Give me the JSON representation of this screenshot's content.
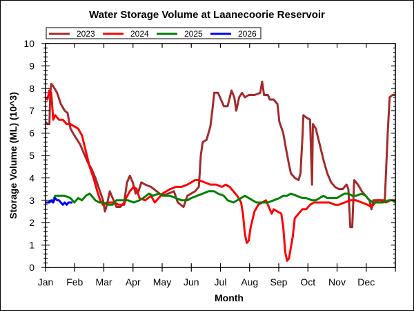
{
  "chart_data": {
    "type": "line",
    "title": "Water Storage Volume at Laanecoorie Reservoir",
    "xlabel": "Month",
    "ylabel": "Storage Volume (ML) (10^3)",
    "x_unit": "day of year",
    "xlim": [
      0,
      365
    ],
    "ylim": [
      0,
      10
    ],
    "yticks": [
      0,
      1,
      2,
      3,
      4,
      5,
      6,
      7,
      8,
      9,
      10
    ],
    "xtick_labels": [
      "Jan",
      "Feb",
      "Mar",
      "Apr",
      "May",
      "Jun",
      "Jul",
      "Aug",
      "Sep",
      "Oct",
      "Nov",
      "Dec"
    ],
    "grid": false,
    "legend_position": "top-left",
    "series": [
      {
        "name": "2023",
        "color": "#a52a2a",
        "points": [
          [
            0,
            6.5
          ],
          [
            2,
            6.4
          ],
          [
            4,
            6.4
          ],
          [
            5,
            7.8
          ],
          [
            6,
            8.2
          ],
          [
            8,
            8.1
          ],
          [
            12,
            7.8
          ],
          [
            16,
            7.3
          ],
          [
            20,
            7.0
          ],
          [
            23,
            6.9
          ],
          [
            26,
            6.2
          ],
          [
            30,
            5.9
          ],
          [
            36,
            5.5
          ],
          [
            40,
            5.1
          ],
          [
            44,
            4.7
          ],
          [
            48,
            4.4
          ],
          [
            52,
            4.0
          ],
          [
            56,
            3.5
          ],
          [
            60,
            3.0
          ],
          [
            62,
            2.5
          ],
          [
            64,
            2.8
          ],
          [
            67,
            3.4
          ],
          [
            71,
            3.0
          ],
          [
            74,
            2.7
          ],
          [
            78,
            2.7
          ],
          [
            82,
            2.9
          ],
          [
            85,
            3.8
          ],
          [
            88,
            4.1
          ],
          [
            91,
            3.8
          ],
          [
            94,
            3.3
          ],
          [
            97,
            3.4
          ],
          [
            100,
            3.8
          ],
          [
            104,
            3.7
          ],
          [
            110,
            3.6
          ],
          [
            116,
            3.4
          ],
          [
            122,
            3.2
          ],
          [
            128,
            3.3
          ],
          [
            134,
            3.4
          ],
          [
            138,
            2.9
          ],
          [
            144,
            2.7
          ],
          [
            148,
            3.2
          ],
          [
            152,
            3.3
          ],
          [
            156,
            3.4
          ],
          [
            160,
            3.6
          ],
          [
            162,
            5.0
          ],
          [
            164,
            5.6
          ],
          [
            168,
            5.7
          ],
          [
            172,
            6.3
          ],
          [
            174,
            7.0
          ],
          [
            176,
            7.8
          ],
          [
            180,
            7.8
          ],
          [
            184,
            7.4
          ],
          [
            186,
            7.2
          ],
          [
            190,
            7.2
          ],
          [
            194,
            7.9
          ],
          [
            197,
            7.6
          ],
          [
            199,
            7.0
          ],
          [
            202,
            7.6
          ],
          [
            205,
            7.8
          ],
          [
            208,
            7.6
          ],
          [
            212,
            7.7
          ],
          [
            218,
            7.7
          ],
          [
            224,
            7.8
          ],
          [
            226,
            8.3
          ],
          [
            228,
            7.7
          ],
          [
            232,
            7.7
          ],
          [
            234,
            7.5
          ],
          [
            238,
            7.5
          ],
          [
            242,
            7.3
          ],
          [
            244,
            6.5
          ],
          [
            248,
            6.0
          ],
          [
            250,
            5.5
          ],
          [
            254,
            4.6
          ],
          [
            256,
            4.2
          ],
          [
            260,
            4.0
          ],
          [
            264,
            3.9
          ],
          [
            266,
            4.2
          ],
          [
            268,
            5.8
          ],
          [
            269,
            6.8
          ],
          [
            272,
            6.7
          ],
          [
            276,
            6.6
          ],
          [
            278,
            3.7
          ],
          [
            279,
            6.4
          ],
          [
            282,
            6.2
          ],
          [
            286,
            5.5
          ],
          [
            290,
            4.8
          ],
          [
            294,
            4.2
          ],
          [
            298,
            3.8
          ],
          [
            302,
            3.6
          ],
          [
            306,
            3.5
          ],
          [
            310,
            3.5
          ],
          [
            314,
            3.7
          ],
          [
            316,
            3.5
          ],
          [
            318,
            1.8
          ],
          [
            320,
            1.8
          ],
          [
            322,
            3.9
          ],
          [
            326,
            3.7
          ],
          [
            330,
            3.4
          ],
          [
            334,
            3.2
          ],
          [
            338,
            3.0
          ],
          [
            340,
            2.6
          ],
          [
            342,
            3.0
          ],
          [
            346,
            3.0
          ],
          [
            354,
            3.0
          ],
          [
            357,
            6.0
          ],
          [
            359,
            7.6
          ],
          [
            362,
            7.7
          ],
          [
            365,
            7.7
          ]
        ]
      },
      {
        "name": "2024",
        "color": "#ff0000",
        "points": [
          [
            0,
            7.6
          ],
          [
            2,
            7.5
          ],
          [
            4,
            7.9
          ],
          [
            6,
            7.8
          ],
          [
            8,
            6.6
          ],
          [
            10,
            6.8
          ],
          [
            14,
            6.6
          ],
          [
            18,
            6.6
          ],
          [
            22,
            6.4
          ],
          [
            26,
            6.4
          ],
          [
            30,
            6.3
          ],
          [
            34,
            6.2
          ],
          [
            38,
            5.9
          ],
          [
            42,
            5.2
          ],
          [
            46,
            4.5
          ],
          [
            50,
            4.0
          ],
          [
            54,
            3.4
          ],
          [
            57,
            3.0
          ],
          [
            60,
            2.8
          ],
          [
            64,
            2.9
          ],
          [
            68,
            2.9
          ],
          [
            72,
            2.9
          ],
          [
            76,
            2.8
          ],
          [
            80,
            2.8
          ],
          [
            82,
            2.8
          ],
          [
            84,
            3.1
          ],
          [
            88,
            3.4
          ],
          [
            92,
            3.6
          ],
          [
            95,
            3.5
          ],
          [
            98,
            3.1
          ],
          [
            104,
            3.0
          ],
          [
            110,
            3.2
          ],
          [
            114,
            2.9
          ],
          [
            118,
            3.1
          ],
          [
            122,
            3.3
          ],
          [
            126,
            3.4
          ],
          [
            130,
            3.5
          ],
          [
            136,
            3.6
          ],
          [
            142,
            3.6
          ],
          [
            148,
            3.7
          ],
          [
            152,
            3.8
          ],
          [
            156,
            3.9
          ],
          [
            160,
            3.9
          ],
          [
            166,
            3.8
          ],
          [
            172,
            3.7
          ],
          [
            178,
            3.7
          ],
          [
            184,
            3.6
          ],
          [
            188,
            3.7
          ],
          [
            192,
            3.6
          ],
          [
            196,
            3.4
          ],
          [
            200,
            3.2
          ],
          [
            204,
            2.9
          ],
          [
            206,
            2.4
          ],
          [
            208,
            1.5
          ],
          [
            210,
            1.1
          ],
          [
            212,
            1.2
          ],
          [
            214,
            1.8
          ],
          [
            218,
            2.5
          ],
          [
            222,
            2.8
          ],
          [
            226,
            2.9
          ],
          [
            230,
            3.0
          ],
          [
            234,
            2.6
          ],
          [
            236,
            2.4
          ],
          [
            238,
            2.6
          ],
          [
            242,
            2.5
          ],
          [
            246,
            2.4
          ],
          [
            248,
            1.8
          ],
          [
            250,
            0.7
          ],
          [
            252,
            0.3
          ],
          [
            254,
            0.4
          ],
          [
            256,
            0.9
          ],
          [
            258,
            1.4
          ],
          [
            260,
            2.2
          ],
          [
            264,
            2.4
          ],
          [
            268,
            2.6
          ],
          [
            272,
            2.6
          ],
          [
            276,
            2.8
          ],
          [
            280,
            2.9
          ],
          [
            284,
            2.9
          ],
          [
            290,
            2.9
          ],
          [
            296,
            2.9
          ],
          [
            302,
            2.8
          ],
          [
            306,
            2.8
          ],
          [
            312,
            2.9
          ],
          [
            318,
            3.0
          ],
          [
            324,
            3.0
          ],
          [
            330,
            2.9
          ],
          [
            336,
            2.8
          ],
          [
            340,
            2.7
          ],
          [
            344,
            2.9
          ],
          [
            346,
            3.0
          ],
          [
            350,
            3.0
          ],
          [
            355,
            2.9
          ],
          [
            360,
            3.0
          ],
          [
            365,
            3.0
          ]
        ]
      },
      {
        "name": "2025",
        "color": "#008000",
        "points": [
          [
            0,
            2.9
          ],
          [
            4,
            2.9
          ],
          [
            8,
            3.0
          ],
          [
            10,
            3.2
          ],
          [
            14,
            3.2
          ],
          [
            20,
            3.2
          ],
          [
            26,
            3.1
          ],
          [
            28,
            3.0
          ],
          [
            30,
            2.9
          ],
          [
            34,
            3.1
          ],
          [
            38,
            3.0
          ],
          [
            42,
            3.2
          ],
          [
            46,
            3.3
          ],
          [
            48,
            3.2
          ],
          [
            52,
            3.0
          ],
          [
            56,
            2.9
          ],
          [
            60,
            2.9
          ],
          [
            66,
            2.8
          ],
          [
            70,
            2.8
          ],
          [
            74,
            3.0
          ],
          [
            80,
            3.0
          ],
          [
            86,
            3.0
          ],
          [
            92,
            2.9
          ],
          [
            98,
            3.0
          ],
          [
            102,
            3.1
          ],
          [
            108,
            3.3
          ],
          [
            112,
            3.2
          ],
          [
            118,
            3.3
          ],
          [
            124,
            3.2
          ],
          [
            130,
            3.2
          ],
          [
            136,
            3.1
          ],
          [
            142,
            3.0
          ],
          [
            148,
            3.0
          ],
          [
            152,
            3.1
          ],
          [
            158,
            3.2
          ],
          [
            164,
            3.3
          ],
          [
            170,
            3.4
          ],
          [
            176,
            3.4
          ],
          [
            180,
            3.3
          ],
          [
            186,
            3.2
          ],
          [
            190,
            3.0
          ],
          [
            196,
            2.9
          ],
          [
            200,
            3.0
          ],
          [
            204,
            3.1
          ],
          [
            208,
            3.2
          ],
          [
            212,
            3.1
          ],
          [
            216,
            3.0
          ],
          [
            220,
            2.9
          ],
          [
            226,
            2.9
          ],
          [
            232,
            2.9
          ],
          [
            238,
            3.0
          ],
          [
            244,
            3.1
          ],
          [
            248,
            3.2
          ],
          [
            252,
            3.2
          ],
          [
            256,
            3.3
          ],
          [
            262,
            3.2
          ],
          [
            268,
            3.1
          ],
          [
            272,
            3.1
          ],
          [
            278,
            3.0
          ],
          [
            282,
            3.0
          ],
          [
            286,
            3.1
          ],
          [
            290,
            3.2
          ],
          [
            294,
            3.1
          ],
          [
            300,
            3.1
          ],
          [
            304,
            3.1
          ],
          [
            308,
            3.2
          ],
          [
            312,
            3.3
          ],
          [
            316,
            3.3
          ],
          [
            320,
            3.2
          ],
          [
            324,
            3.2
          ],
          [
            330,
            3.3
          ],
          [
            334,
            3.2
          ],
          [
            338,
            3.0
          ],
          [
            342,
            2.9
          ],
          [
            346,
            2.9
          ],
          [
            352,
            2.9
          ],
          [
            358,
            3.0
          ],
          [
            362,
            3.0
          ],
          [
            365,
            2.9
          ]
        ]
      },
      {
        "name": "2026",
        "color": "#0000ff",
        "points": [
          [
            0,
            2.9
          ],
          [
            3,
            2.9
          ],
          [
            6,
            3.0
          ],
          [
            8,
            2.9
          ],
          [
            10,
            3.1
          ],
          [
            12,
            3.0
          ],
          [
            14,
            3.0
          ],
          [
            16,
            2.9
          ],
          [
            18,
            2.8
          ],
          [
            20,
            2.9
          ],
          [
            22,
            2.8
          ],
          [
            24,
            2.9
          ],
          [
            26,
            2.9
          ],
          [
            28,
            2.9
          ]
        ]
      }
    ]
  }
}
